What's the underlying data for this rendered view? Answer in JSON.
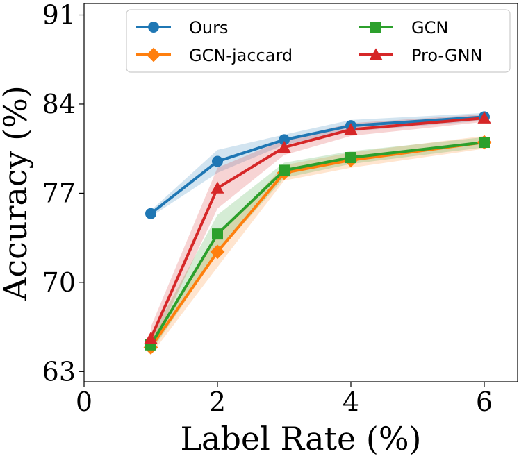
{
  "chart_data": {
    "type": "line",
    "xlabel": "Label Rate (%)",
    "ylabel": "Accuracy (%)",
    "xlim": [
      0,
      6.5
    ],
    "ylim": [
      62.2,
      91.9
    ],
    "xticks": [
      0,
      2,
      4,
      6
    ],
    "yticks": [
      63,
      70,
      77,
      84,
      91
    ],
    "legend_position": "top-right",
    "grid": false,
    "series": [
      {
        "name": "Ours",
        "color": "#1f77b4",
        "marker": "circle",
        "x": [
          1,
          2,
          3,
          4,
          6
        ],
        "y": [
          75.4,
          79.5,
          81.2,
          82.3,
          83.0
        ],
        "band": [
          0.25,
          0.9,
          0.4,
          0.45,
          0.3
        ]
      },
      {
        "name": "GCN-jaccard",
        "color": "#ff7f0e",
        "marker": "diamond",
        "x": [
          1,
          2,
          3,
          4,
          6
        ],
        "y": [
          64.9,
          72.4,
          78.6,
          79.6,
          81.0
        ],
        "band": [
          0.6,
          1.2,
          0.6,
          0.6,
          0.5
        ]
      },
      {
        "name": "GCN",
        "color": "#2ca02c",
        "marker": "square",
        "x": [
          1,
          2,
          3,
          4,
          6
        ],
        "y": [
          65.1,
          73.8,
          78.8,
          79.8,
          81.0
        ],
        "band": [
          0.6,
          1.5,
          0.6,
          0.5,
          0.4
        ]
      },
      {
        "name": "Pro-GNN",
        "color": "#d62728",
        "marker": "triangle",
        "x": [
          1,
          2,
          3,
          4,
          6
        ],
        "y": [
          65.6,
          77.4,
          80.6,
          82.0,
          82.9
        ],
        "band": [
          0.9,
          1.6,
          0.6,
          0.5,
          0.3
        ]
      }
    ]
  }
}
